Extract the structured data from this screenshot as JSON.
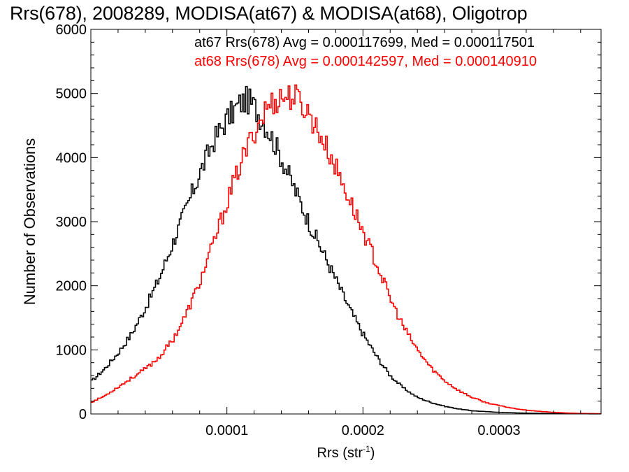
{
  "chart_data": {
    "type": "histogram-step",
    "title": "Rrs(678), 2008289, MODISA(at67) & MODISA(at68), Oligotrop",
    "xlabel": "Rrs (str",
    "xlabel_sup": "-1",
    "xlabel_close": ")",
    "ylabel": "Number of Observations",
    "xlim": [
      0.0,
      0.000375
    ],
    "ylim": [
      0,
      6000
    ],
    "x_ticks": [
      {
        "value": 0.0001,
        "label": "0.0001"
      },
      {
        "value": 0.0002,
        "label": "0.0002"
      },
      {
        "value": 0.0003,
        "label": "0.0003"
      }
    ],
    "y_ticks": [
      {
        "value": 0,
        "label": "0"
      },
      {
        "value": 1000,
        "label": "1000"
      },
      {
        "value": 2000,
        "label": "2000"
      },
      {
        "value": 3000,
        "label": "3000"
      },
      {
        "value": 4000,
        "label": "4000"
      },
      {
        "value": 5000,
        "label": "5000"
      },
      {
        "value": 6000,
        "label": "6000"
      }
    ],
    "series": [
      {
        "name": "at67",
        "label": "at67 Rrs(678) Avg = 0.000117699, Med = 0.000117501",
        "color": "#000000",
        "x": [
          0.0,
          1e-05,
          2e-05,
          3e-05,
          4e-05,
          5e-05,
          6e-05,
          7e-05,
          8e-05,
          9e-05,
          0.0001,
          0.00011,
          0.000115,
          0.00012,
          0.00013,
          0.00014,
          0.00015,
          0.00016,
          0.00017,
          0.00018,
          0.00019,
          0.0002,
          0.00021,
          0.00022,
          0.00023,
          0.00024,
          0.00025,
          0.00026,
          0.00027,
          0.00028,
          0.0003,
          0.00032,
          0.00034,
          0.00036,
          0.000375
        ],
        "y": [
          500,
          700,
          950,
          1250,
          1650,
          2100,
          2650,
          3200,
          3750,
          4250,
          4600,
          4850,
          4900,
          4800,
          4450,
          4000,
          3500,
          3000,
          2550,
          2100,
          1650,
          1250,
          900,
          600,
          400,
          260,
          180,
          120,
          80,
          50,
          25,
          12,
          6,
          3,
          2
        ]
      },
      {
        "name": "at68",
        "label": "at68 Rrs(678) Avg = 0.000142597, Med = 0.000140910",
        "color": "#ff0000",
        "x": [
          0.0,
          1e-05,
          2e-05,
          3e-05,
          4e-05,
          5e-05,
          6e-05,
          7e-05,
          8e-05,
          9e-05,
          0.0001,
          0.00011,
          0.00012,
          0.00013,
          0.00014,
          0.00015,
          0.00016,
          0.00017,
          0.00018,
          0.00019,
          0.0002,
          0.00021,
          0.00022,
          0.00023,
          0.00024,
          0.00025,
          0.00026,
          0.00027,
          0.00028,
          0.00029,
          0.0003,
          0.00031,
          0.00032,
          0.00033,
          0.00034,
          0.00035,
          0.00036,
          0.000375
        ],
        "y": [
          180,
          280,
          420,
          560,
          700,
          880,
          1150,
          1550,
          2050,
          2650,
          3300,
          3900,
          4400,
          4800,
          4950,
          4950,
          4700,
          4300,
          3850,
          3350,
          2850,
          2350,
          1800,
          1350,
          1000,
          720,
          520,
          370,
          260,
          180,
          130,
          90,
          60,
          40,
          25,
          15,
          8,
          4
        ]
      }
    ]
  }
}
